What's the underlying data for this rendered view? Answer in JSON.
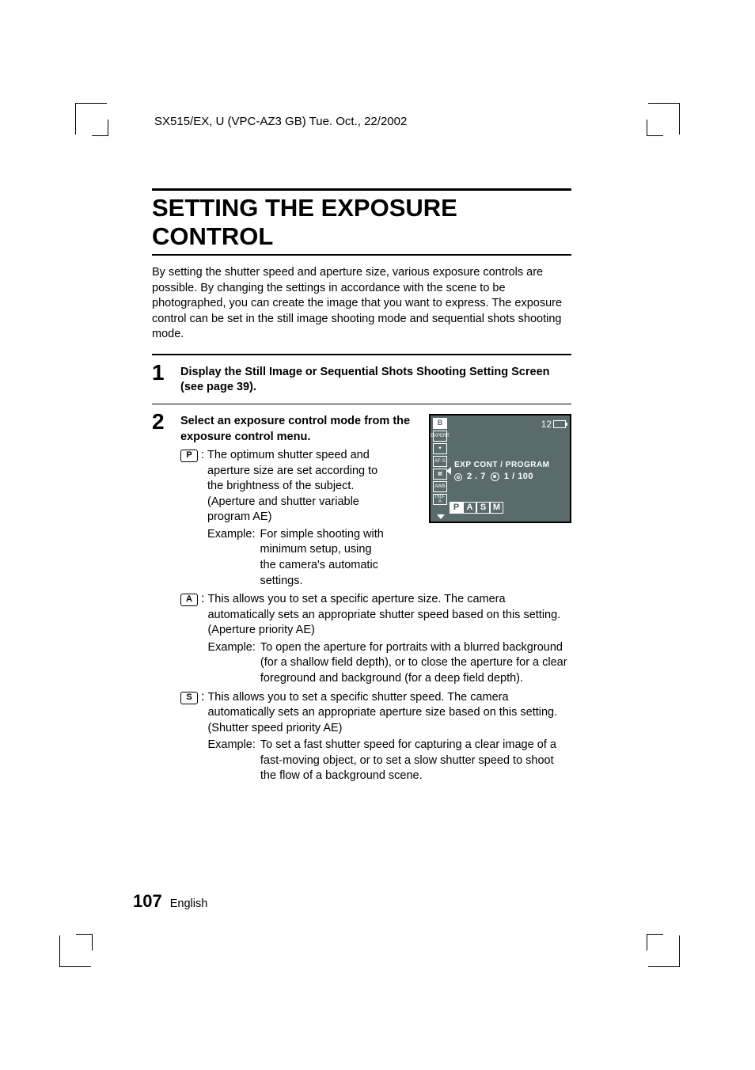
{
  "header": "SX515/EX, U (VPC-AZ3 GB)    Tue. Oct., 22/2002",
  "title": "SETTING THE EXPOSURE CONTROL",
  "intro": "By setting the shutter speed and aperture size, various exposure controls are possible. By changing the settings in accordance with the scene to be photographed, you can create the image that you want to express. The exposure control can be set in the still image shooting mode and sequential shots shooting mode.",
  "step1": {
    "number": "1",
    "heading": "Display the Still Image or Sequential Shots Shooting Setting Screen (see page 39)."
  },
  "step2": {
    "number": "2",
    "heading": "Select an exposure control mode from the exposure control menu."
  },
  "modes": {
    "p": {
      "letter": "P",
      "desc": "The optimum shutter speed and aperture size are set according to the brightness of the subject. (Aperture and shutter variable program AE)",
      "example_label": "Example:",
      "example": "For simple shooting with minimum setup, using the camera's automatic settings."
    },
    "a": {
      "letter": "A",
      "desc": "This allows you to set a specific aperture size. The camera automatically sets an appropriate shutter speed based on this setting. (Aperture priority AE)",
      "example_label": "Example:",
      "example": "To open the aperture for portraits with a blurred background (for a shallow field depth), or to close the aperture for a clear foreground and background (for a deep field depth)."
    },
    "s": {
      "letter": "S",
      "desc": "This allows you to set a specific shutter speed. The camera automatically sets an appropriate aperture size based on this setting. (Shutter speed priority AE)",
      "example_label": "Example:",
      "example": "To set a fast shutter speed for capturing a clear image of a fast-moving object, or to set a slow shutter speed to shoot the flow of a background scene."
    }
  },
  "lcd": {
    "shots_remaining": "12",
    "left_icons": [
      "B",
      "EXPERT",
      "✦",
      "AF-S",
      "▦",
      "AWB",
      "ISO-A"
    ],
    "line1": "EXP  CONT / PROGRAM",
    "aperture": "2 . 7",
    "shutter": "1 / 100",
    "pasm": [
      "P",
      "A",
      "S",
      "M"
    ],
    "active_index": 0
  },
  "footer": {
    "page": "107",
    "lang": "English"
  },
  "colors": {
    "text": "#000000",
    "background": "#ffffff",
    "lcd_bg": "#5a6b6b",
    "lcd_fg": "#ffffff"
  },
  "typography": {
    "body_fontsize": 14.5,
    "title_fontsize": 31,
    "step_number_fontsize": 28,
    "page_number_fontsize": 22
  }
}
